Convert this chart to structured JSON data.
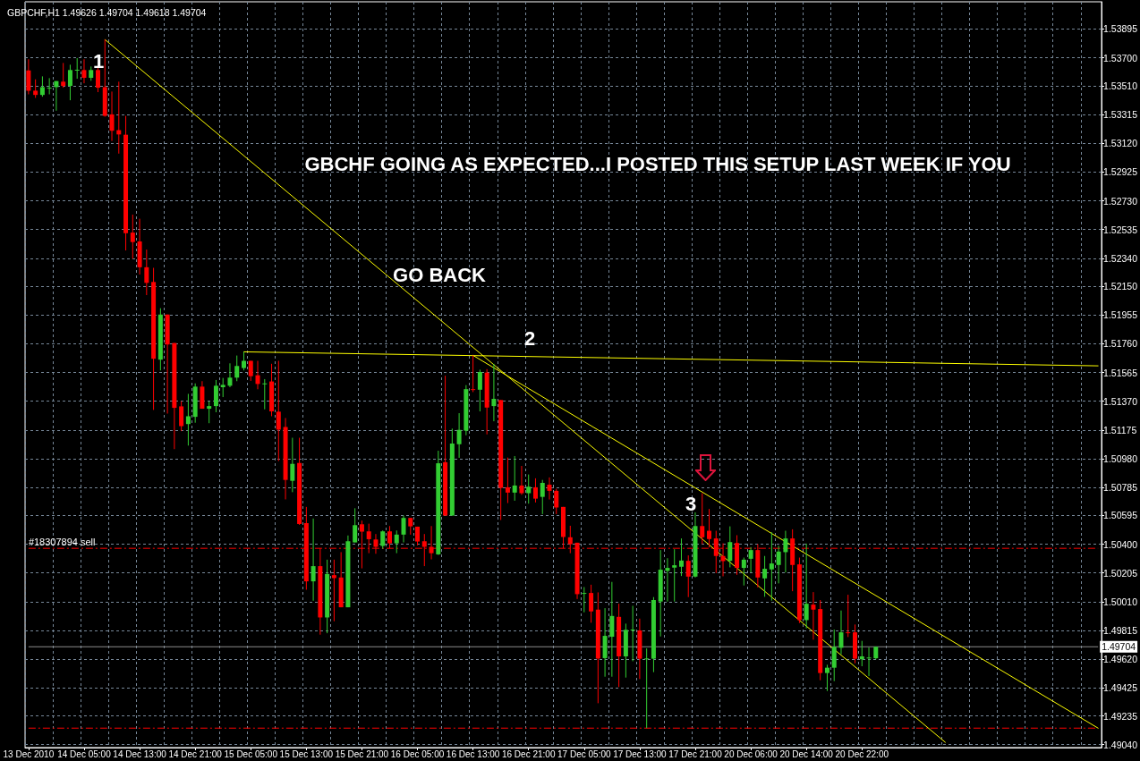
{
  "chart_data": {
    "type": "candlestick",
    "title": "GBPCHF,H1 1.49626 1.49704 1.49618 1.49704",
    "categories": [
      "13 Dec 2010",
      null,
      null,
      null,
      null,
      null,
      null,
      null,
      "14 Dec 05:00",
      null,
      null,
      null,
      null,
      null,
      null,
      null,
      "14 Dec 13:00",
      null,
      null,
      null,
      null,
      null,
      null,
      null,
      "14 Dec 21:00",
      null,
      null,
      null,
      null,
      null,
      null,
      null,
      "15 Dec 05:00",
      null,
      null,
      null,
      null,
      null,
      null,
      null,
      "15 Dec 13:00",
      null,
      null,
      null,
      null,
      null,
      null,
      null,
      "15 Dec 21:00",
      null,
      null,
      null,
      null,
      null,
      null,
      null,
      "16 Dec 05:00",
      null,
      null,
      null,
      null,
      null,
      null,
      null,
      "16 Dec 13:00",
      null,
      null,
      null,
      null,
      null,
      null,
      null,
      "16 Dec 21:00",
      null,
      null,
      null,
      null,
      null,
      null,
      null,
      "17 Dec 05:00",
      null,
      null,
      null,
      null,
      null,
      null,
      null,
      "17 Dec 13:00",
      null,
      null,
      null,
      null,
      null,
      null,
      null,
      "17 Dec 21:00",
      null,
      null,
      null,
      null,
      null,
      null,
      null,
      "20 Dec 06:00",
      null,
      null,
      null,
      null,
      null,
      null,
      null,
      "20 Dec 14:00",
      null,
      null,
      null,
      null,
      null,
      null,
      null,
      "20 Dec 22:00",
      null,
      null,
      null,
      null,
      null,
      null,
      null,
      null,
      null,
      null,
      null,
      null,
      null,
      null,
      null,
      null,
      null,
      null,
      null,
      null,
      null,
      null,
      null,
      null,
      null,
      null,
      null,
      null,
      null,
      null,
      null,
      null,
      null,
      null
    ],
    "ohlc": [
      [
        1.53615,
        1.5369,
        1.53452,
        1.53477
      ],
      [
        1.53477,
        1.53554,
        1.53428,
        1.53448
      ],
      [
        1.53448,
        1.53574,
        1.53436,
        1.53501
      ],
      [
        1.53495,
        1.53562,
        1.53452,
        1.53497
      ],
      [
        1.53501,
        1.53542,
        1.53341,
        1.53542
      ],
      [
        1.53538,
        1.53665,
        1.53497,
        1.53509
      ],
      [
        1.53509,
        1.53653,
        1.53412,
        1.53617
      ],
      [
        1.53615,
        1.53698,
        1.53558,
        1.53619
      ],
      [
        1.53617,
        1.5369,
        1.53527,
        1.53564
      ],
      [
        1.53564,
        1.53641,
        1.53544,
        1.53617
      ],
      [
        1.53617,
        1.53637,
        1.53467,
        1.53497
      ],
      [
        1.53501,
        1.53824,
        1.533,
        1.53306
      ],
      [
        1.53316,
        1.53471,
        1.53136,
        1.53205
      ],
      [
        1.53209,
        1.53538,
        1.5305,
        1.5318
      ],
      [
        1.53178,
        1.53306,
        1.52393,
        1.5251
      ],
      [
        1.52514,
        1.52636,
        1.52336,
        1.5245
      ],
      [
        1.52454,
        1.52608,
        1.5223,
        1.52279
      ],
      [
        1.52279,
        1.52399,
        1.5209,
        1.52173
      ],
      [
        1.52179,
        1.52275,
        1.51311,
        1.51658
      ],
      [
        1.51652,
        1.52001,
        1.51579,
        1.51958
      ],
      [
        1.51958,
        1.51958,
        1.51286,
        1.51755
      ],
      [
        1.51765,
        1.51765,
        1.51045,
        1.51325
      ],
      [
        1.51335,
        1.5137,
        1.51167,
        1.51201
      ],
      [
        1.51215,
        1.5142,
        1.51069,
        1.51268
      ],
      [
        1.51264,
        1.51491,
        1.51224,
        1.51469
      ],
      [
        1.51469,
        1.51506,
        1.51319,
        1.51319
      ],
      [
        1.51319,
        1.51368,
        1.51221,
        1.51337
      ],
      [
        1.51337,
        1.51514,
        1.51295,
        1.51475
      ],
      [
        1.51465,
        1.51528,
        1.51398,
        1.51481
      ],
      [
        1.51475,
        1.51627,
        1.51465,
        1.5153
      ],
      [
        1.5153,
        1.5168,
        1.51506,
        1.51609
      ],
      [
        1.51595,
        1.51705,
        1.51579,
        1.51644
      ],
      [
        1.51644,
        1.51644,
        1.51508,
        1.5154
      ],
      [
        1.51546,
        1.51644,
        1.51451,
        1.51487
      ],
      [
        1.51485,
        1.5152,
        1.51315,
        1.51491
      ],
      [
        1.51504,
        1.51624,
        1.51268,
        1.51301
      ],
      [
        1.51299,
        1.51644,
        1.50964,
        1.51177
      ],
      [
        1.51195,
        1.51256,
        1.50704,
        1.50836
      ],
      [
        1.5083,
        1.51122,
        1.50753,
        1.50945
      ],
      [
        1.50951,
        1.51122,
        1.50531,
        1.50537
      ],
      [
        1.50543,
        1.50653,
        1.50091,
        1.50148
      ],
      [
        1.50148,
        1.50574,
        1.50016,
        1.50251
      ],
      [
        1.50251,
        1.50372,
        1.49786,
        1.49903
      ],
      [
        1.49903,
        1.50295,
        1.49796,
        1.50198
      ],
      [
        1.5019,
        1.50295,
        1.49877,
        1.5017
      ],
      [
        1.50174,
        1.50346,
        1.49972,
        1.49972
      ],
      [
        1.49972,
        1.50459,
        1.49972,
        1.5042
      ],
      [
        1.50412,
        1.50644,
        1.50412,
        1.50529
      ],
      [
        1.50535,
        1.5056,
        1.50236,
        1.50485
      ],
      [
        1.50487,
        1.50539,
        1.50339,
        1.50434
      ],
      [
        1.50432,
        1.50469,
        1.50335,
        1.50382
      ],
      [
        1.50388,
        1.50493,
        1.50368,
        1.50487
      ],
      [
        1.50487,
        1.50523,
        1.50372,
        1.50406
      ],
      [
        1.50406,
        1.50493,
        1.50339,
        1.50465
      ],
      [
        1.50465,
        1.50594,
        1.50412,
        1.50578
      ],
      [
        1.50578,
        1.50578,
        1.50465,
        1.50521
      ],
      [
        1.50519,
        1.50519,
        1.50392,
        1.50418
      ],
      [
        1.5042,
        1.50469,
        1.50251,
        1.50382
      ],
      [
        1.50382,
        1.50523,
        1.50297,
        1.50339
      ],
      [
        1.50331,
        1.51034,
        1.50327,
        1.50949
      ],
      [
        1.50956,
        1.51543,
        1.50594,
        1.50594
      ],
      [
        1.50594,
        1.51184,
        1.50594,
        1.51083
      ],
      [
        1.51079,
        1.51289,
        1.50986,
        1.51176
      ],
      [
        1.5117,
        1.51479,
        1.51139,
        1.51452
      ],
      [
        1.51452,
        1.51681,
        1.51432,
        1.51448
      ],
      [
        1.51448,
        1.51584,
        1.51301,
        1.51568
      ],
      [
        1.51564,
        1.51588,
        1.51145,
        1.51327
      ],
      [
        1.51337,
        1.51624,
        1.51234,
        1.51386
      ],
      [
        1.51378,
        1.51378,
        1.50564,
        1.50782
      ],
      [
        1.50786,
        1.50988,
        1.50679,
        1.5075
      ],
      [
        1.5075,
        1.50998,
        1.50695,
        1.50798
      ],
      [
        1.50798,
        1.50931,
        1.50735,
        1.50746
      ],
      [
        1.50746,
        1.50873,
        1.50675,
        1.5079
      ],
      [
        1.50786,
        1.50847,
        1.50683,
        1.50709
      ],
      [
        1.50721,
        1.50836,
        1.50604,
        1.50816
      ],
      [
        1.50804,
        1.50853,
        1.50703,
        1.50762
      ],
      [
        1.50762,
        1.50776,
        1.50604,
        1.50649
      ],
      [
        1.50653,
        1.50653,
        1.50372,
        1.50449
      ],
      [
        1.50447,
        1.50525,
        1.50339,
        1.504
      ],
      [
        1.5041,
        1.5041,
        1.50028,
        1.50061
      ],
      [
        1.50065,
        1.50109,
        1.49938,
        1.50069
      ],
      [
        1.50069,
        1.50125,
        1.49867,
        1.49944
      ],
      [
        1.49956,
        1.50073,
        1.49321,
        1.49624
      ],
      [
        1.49627,
        1.49966,
        1.49501,
        1.49778
      ],
      [
        1.49772,
        1.50144,
        1.49501,
        1.49913
      ],
      [
        1.49907,
        1.49996,
        1.49431,
        1.49639
      ],
      [
        1.49639,
        1.49861,
        1.49495,
        1.49819
      ],
      [
        1.49819,
        1.49982,
        1.49606,
        1.49821
      ],
      [
        1.49815,
        1.49895,
        1.49485,
        1.49623
      ],
      [
        1.49621,
        1.49693,
        1.49152,
        1.49625
      ],
      [
        1.49623,
        1.50041,
        1.49532,
        1.50021
      ],
      [
        1.50011,
        1.5036,
        1.49774,
        1.50227
      ],
      [
        1.50219,
        1.50305,
        1.50011,
        1.50239
      ],
      [
        1.50241,
        1.50366,
        1.50011,
        1.50257
      ],
      [
        1.50247,
        1.50439,
        1.50184,
        1.50289
      ],
      [
        1.50287,
        1.50324,
        1.50041,
        1.5018
      ],
      [
        1.5018,
        1.50616,
        1.50174,
        1.50523
      ],
      [
        1.50523,
        1.50746,
        1.504,
        1.50447
      ],
      [
        1.50491,
        1.50639,
        1.50378,
        1.50435
      ],
      [
        1.50439,
        1.50491,
        1.50204,
        1.5032
      ],
      [
        1.5032,
        1.50406,
        1.50182,
        1.50285
      ],
      [
        1.50287,
        1.50521,
        1.50243,
        1.50414
      ],
      [
        1.50408,
        1.50461,
        1.50192,
        1.50239
      ],
      [
        1.50239,
        1.50309,
        1.5012,
        1.50295
      ],
      [
        1.50301,
        1.5038,
        1.50208,
        1.5036
      ],
      [
        1.5036,
        1.504,
        1.50107,
        1.50174
      ],
      [
        1.50168,
        1.5032,
        1.50043,
        1.50233
      ],
      [
        1.50229,
        1.50481,
        1.50017,
        1.50269
      ],
      [
        1.50259,
        1.5039,
        1.50134,
        1.5035
      ],
      [
        1.50346,
        1.50491,
        1.50208,
        1.50439
      ],
      [
        1.50439,
        1.50501,
        1.50081,
        1.50259
      ],
      [
        1.50263,
        1.50309,
        1.49865,
        1.49885
      ],
      [
        1.49885,
        1.50404,
        1.49829,
        1.49996
      ],
      [
        1.4999,
        1.50075,
        1.49752,
        1.49956
      ],
      [
        1.4996,
        1.50021,
        1.49477,
        1.49526
      ],
      [
        1.49526,
        1.49582,
        1.49404,
        1.49562
      ],
      [
        1.49562,
        1.49821,
        1.49471,
        1.49703
      ],
      [
        1.49697,
        1.4995,
        1.49653,
        1.49802
      ],
      [
        1.49802,
        1.50057,
        1.4977,
        1.49798
      ],
      [
        1.49802,
        1.49855,
        1.49592,
        1.49623
      ],
      [
        1.49619,
        1.49744,
        1.49572,
        1.49639
      ],
      [
        1.49629,
        1.49699,
        1.49505,
        1.49631
      ],
      [
        1.49626,
        1.49704,
        1.49618,
        1.49704
      ],
      null,
      null,
      null,
      null,
      null,
      null,
      null,
      null,
      null,
      null,
      null,
      null,
      null,
      null,
      null,
      null,
      null,
      null,
      null,
      null,
      null,
      null,
      null,
      null,
      null,
      null,
      null,
      null,
      null,
      null,
      null,
      null
    ],
    "colors": [
      "#ff0000",
      "#ff0000",
      "#32cd32",
      "#32cd32",
      "#32cd32",
      "#ff0000",
      "#32cd32",
      "#32cd32",
      "#ff0000",
      "#32cd32",
      "#ff0000",
      "#ff0000",
      "#ff0000",
      "#ff0000",
      "#ff0000",
      "#ff0000",
      "#ff0000",
      "#ff0000",
      "#ff0000",
      "#32cd32",
      "#ff0000",
      "#ff0000",
      "#ff0000",
      "#32cd32",
      "#32cd32",
      "#ff0000",
      "#32cd32",
      "#32cd32",
      "#32cd32",
      "#32cd32",
      "#32cd32",
      "#32cd32",
      "#ff0000",
      "#ff0000",
      "#32cd32",
      "#ff0000",
      "#ff0000",
      "#ff0000",
      "#32cd32",
      "#ff0000",
      "#ff0000",
      "#32cd32",
      "#ff0000",
      "#32cd32",
      "#ff0000",
      "#ff0000",
      "#32cd32",
      "#32cd32",
      "#ff0000",
      "#ff0000",
      "#ff0000",
      "#32cd32",
      "#ff0000",
      "#32cd32",
      "#32cd32",
      "#ff0000",
      "#ff0000",
      "#ff0000",
      "#ff0000",
      "#32cd32",
      "#ff0000",
      "#32cd32",
      "#32cd32",
      "#32cd32",
      "#ff0000",
      "#32cd32",
      "#ff0000",
      "#32cd32",
      "#ff0000",
      "#ff0000",
      "#32cd32",
      "#ff0000",
      "#32cd32",
      "#ff0000",
      "#32cd32",
      "#ff0000",
      "#ff0000",
      "#ff0000",
      "#ff0000",
      "#ff0000",
      "#32cd32",
      "#ff0000",
      "#ff0000",
      "#32cd32",
      "#32cd32",
      "#ff0000",
      "#32cd32",
      "#32cd32",
      "#ff0000",
      "#32cd32",
      "#32cd32",
      "#32cd32",
      "#32cd32",
      "#32cd32",
      "#32cd32",
      "#ff0000",
      "#32cd32",
      "#ff0000",
      "#ff0000",
      "#ff0000",
      "#ff0000",
      "#32cd32",
      "#ff0000",
      "#32cd32",
      "#32cd32",
      "#ff0000",
      "#32cd32",
      "#32cd32",
      "#32cd32",
      "#32cd32",
      "#ff0000",
      "#ff0000",
      "#32cd32",
      "#ff0000",
      "#ff0000",
      "#32cd32",
      "#32cd32",
      "#32cd32",
      "#ff0000",
      "#ff0000",
      "#32cd32",
      "#32cd32",
      "#32cd32",
      null,
      null,
      null,
      null,
      null,
      null,
      null,
      null,
      null,
      null,
      null,
      null,
      null,
      null,
      null,
      null,
      null,
      null,
      null,
      null,
      null,
      null,
      null,
      null,
      null,
      null,
      null,
      null,
      null,
      null,
      null,
      null
    ],
    "series": [
      {
        "type": "line",
        "color": "#ffff00",
        "values": [
          null,
          null,
          null,
          null,
          null,
          null,
          null,
          null,
          null,
          null,
          null,
          1.53824,
          null,
          null,
          null,
          null,
          null,
          null,
          null,
          null,
          null,
          null,
          null,
          null,
          null,
          null,
          null,
          null,
          null,
          null,
          null,
          null,
          null,
          null,
          null,
          null,
          null,
          null,
          null,
          null,
          null,
          null,
          null,
          null,
          null,
          null,
          null,
          null,
          null,
          null,
          null,
          null,
          null,
          null,
          null,
          null,
          null,
          null,
          null,
          null,
          null,
          null,
          null,
          null,
          null,
          null,
          null,
          null,
          null,
          null,
          null,
          null,
          null,
          null,
          null,
          null,
          null,
          null,
          null,
          null,
          null,
          null,
          null,
          null,
          null,
          null,
          null,
          null,
          null,
          null,
          null,
          null,
          null,
          null,
          null,
          null,
          null,
          null,
          null,
          null,
          null,
          null,
          null,
          null,
          null,
          null,
          null,
          null,
          null,
          null,
          null,
          null,
          null,
          null,
          null,
          null,
          null,
          null,
          null,
          null,
          null,
          null,
          null,
          null,
          null,
          null,
          null,
          null,
          null,
          null,
          null,
          null,
          1.49056,
          null,
          null,
          null,
          null,
          null,
          null,
          null,
          null,
          null,
          null,
          null,
          null,
          null,
          null,
          null,
          null,
          null,
          null,
          null,
          null,
          null,
          null
        ]
      },
      {
        "type": "line",
        "color": "#ffff00",
        "values": [
          null,
          null,
          null,
          null,
          null,
          null,
          null,
          null,
          null,
          null,
          null,
          null,
          null,
          null,
          null,
          null,
          null,
          null,
          null,
          null,
          null,
          null,
          null,
          null,
          null,
          null,
          null,
          null,
          null,
          null,
          null,
          null,
          null,
          null,
          null,
          null,
          null,
          null,
          null,
          null,
          null,
          null,
          null,
          null,
          null,
          null,
          null,
          null,
          null,
          null,
          null,
          null,
          null,
          null,
          null,
          null,
          null,
          null,
          null,
          null,
          null,
          null,
          null,
          null,
          1.51681,
          null,
          null,
          null,
          null,
          null,
          null,
          null,
          null,
          null,
          null,
          null,
          null,
          null,
          null,
          null,
          null,
          null,
          null,
          null,
          null,
          null,
          null,
          null,
          null,
          null,
          null,
          null,
          null,
          null,
          null,
          null,
          null,
          null,
          null,
          null,
          null,
          null,
          null,
          null,
          null,
          null,
          null,
          null,
          null,
          null,
          null,
          null,
          null,
          null,
          null,
          null,
          null,
          null,
          null,
          null,
          null,
          null,
          null,
          null,
          null,
          null,
          null,
          null,
          null,
          null,
          null,
          null,
          null,
          null,
          null,
          null,
          null,
          null,
          null,
          null,
          null,
          null,
          null,
          null,
          null,
          null,
          null,
          null,
          null,
          null,
          null,
          null,
          null,
          null,
          1.49152
        ]
      },
      {
        "type": "line",
        "color": "#ffff00",
        "values": [
          null,
          null,
          null,
          null,
          null,
          null,
          null,
          null,
          null,
          null,
          null,
          null,
          null,
          null,
          null,
          null,
          null,
          null,
          null,
          null,
          null,
          null,
          null,
          null,
          null,
          null,
          null,
          null,
          null,
          null,
          null,
          1.51705,
          null,
          null,
          null,
          null,
          null,
          null,
          null,
          null,
          null,
          null,
          null,
          null,
          null,
          null,
          null,
          null,
          null,
          null,
          null,
          null,
          null,
          null,
          null,
          null,
          null,
          null,
          null,
          null,
          null,
          null,
          null,
          null,
          null,
          null,
          null,
          null,
          null,
          null,
          null,
          null,
          null,
          null,
          null,
          null,
          null,
          null,
          null,
          null,
          null,
          null,
          null,
          null,
          null,
          null,
          null,
          null,
          null,
          null,
          null,
          null,
          null,
          null,
          null,
          null,
          null,
          null,
          null,
          null,
          null,
          null,
          null,
          null,
          null,
          null,
          null,
          null,
          null,
          null,
          null,
          null,
          null,
          null,
          null,
          null,
          null,
          null,
          null,
          null,
          null,
          null,
          null,
          null,
          null,
          null,
          null,
          null,
          null,
          null,
          null,
          null,
          null,
          null,
          null,
          null,
          null,
          null,
          null,
          null,
          null,
          null,
          null,
          null,
          null,
          null,
          null,
          null,
          null,
          null,
          null,
          null,
          null,
          null,
          1.5161
        ]
      }
    ],
    "ylim": [
      1.4902,
      1.5408
    ],
    "yticks": [
      {
        "value": 1.4904,
        "label": "1.49040"
      },
      1.49235,
      1.49425,
      {
        "value": 1.4962,
        "label": "1.49620"
      },
      1.49815,
      {
        "value": 1.5001,
        "label": "1.50010"
      },
      1.50205,
      {
        "value": 1.504,
        "label": "1.50400"
      },
      1.50595,
      1.50785,
      {
        "value": 1.5098,
        "label": "1.50980"
      },
      1.51175,
      {
        "value": 1.5137,
        "label": "1.51370"
      },
      1.51565,
      {
        "value": 1.5176,
        "label": "1.51760"
      },
      1.51955,
      {
        "value": 1.5215,
        "label": "1.52150"
      },
      {
        "value": 1.5234,
        "label": "1.52340"
      },
      1.52535,
      {
        "value": 1.5273,
        "label": "1.52730"
      },
      1.52925,
      {
        "value": 1.5312,
        "label": "1.53120"
      },
      1.53315,
      {
        "value": 1.5351,
        "label": "1.53510"
      },
      {
        "value": 1.537,
        "label": "1.53700"
      },
      1.53895
    ],
    "grid": true,
    "marker": "none",
    "line_style": "solid",
    "ref_lines": [
      {
        "axis": "y",
        "value": 1.49704,
        "label": "1.49704",
        "color": "#8c8c8c",
        "line_style": "solid"
      },
      {
        "axis": "y",
        "value": 1.50372,
        "label": "#18307894 sell",
        "color": "#ff0000",
        "line_style": "dashed"
      },
      {
        "axis": "y",
        "value": 1.49152,
        "label": null,
        "color": "#ff0000",
        "line_style": "dashed"
      }
    ],
    "annotations": [
      "1",
      "2",
      "3",
      "GBCHF GOING AS EXPECTED...I POSTED THIS SETUP LAST WEEK IF YOU",
      "GO BACK"
    ]
  }
}
